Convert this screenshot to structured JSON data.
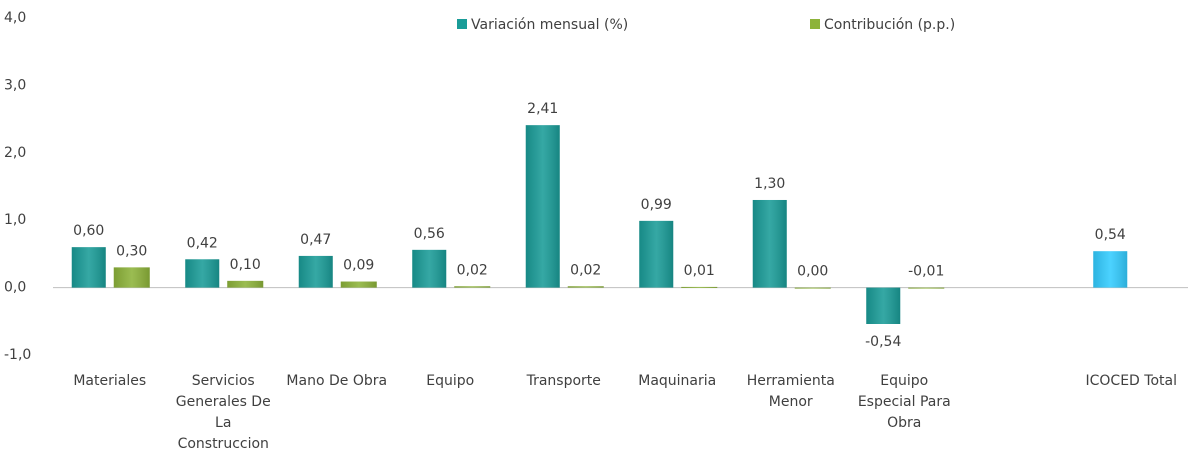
{
  "chart_data": {
    "type": "bar",
    "categories": [
      "Materiales",
      "Servicios Generales De La Construccion",
      "Mano De Obra",
      "Equipo",
      "Transporte",
      "Maquinaria",
      "Herramienta Menor",
      "Equipo Especial Para Obra",
      null,
      "ICOCED Total"
    ],
    "series": [
      {
        "name": "Variación mensual (%)",
        "color": "#1a9c98",
        "point_colors": [
          "#1a9c98",
          "#1a9c98",
          "#1a9c98",
          "#1a9c98",
          "#1a9c98",
          "#1a9c98",
          "#1a9c98",
          "#1a9c98",
          null,
          "#33ccff"
        ],
        "values": [
          0.6,
          0.42,
          0.47,
          0.56,
          2.41,
          0.99,
          1.3,
          -0.54,
          null,
          0.54
        ],
        "value_labels": [
          "0,60",
          "0,42",
          "0,47",
          "0,56",
          "2,41",
          "0,99",
          "1,30",
          "-0,54",
          null,
          "0,54"
        ]
      },
      {
        "name": "Contribución (p.p.)",
        "color": "#8db33a",
        "values": [
          0.3,
          0.1,
          0.09,
          0.02,
          0.02,
          0.01,
          0.0,
          -0.01,
          null,
          null
        ],
        "value_labels": [
          "0,30",
          "0,10",
          "0,09",
          "0,02",
          "0,02",
          "0,01",
          "0,00",
          "-0,01",
          null,
          null
        ]
      }
    ],
    "ylim": [
      -1,
      4
    ],
    "yticks": [
      {
        "value": -1,
        "label": "-1,0"
      },
      {
        "value": 0,
        "label": "0,0"
      },
      {
        "value": 1,
        "label": "1,0"
      },
      {
        "value": 2,
        "label": "2,0"
      },
      {
        "value": 3,
        "label": "3,0"
      },
      {
        "value": 4,
        "label": "4,0"
      }
    ],
    "grid": false
  }
}
